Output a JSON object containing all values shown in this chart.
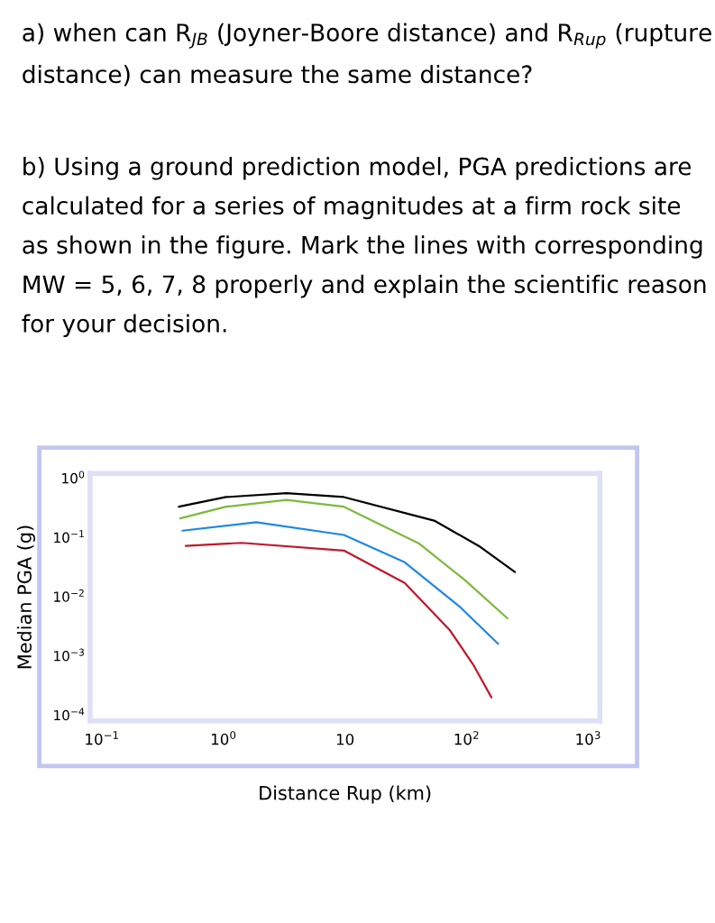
{
  "chart_data": {
    "type": "line",
    "annotations": [
      "a) when can R$_{JB}$ (Joyner-Boore distance) and R$_{Rup}$ (rupture distance) can measure the same distance?",
      "b) Using a ground prediction model, PGA predictions are calculated for a series of magnitudes at a firm rock site as shown in the figure. Mark the lines with corresponding MW = 5, 6, 7, 8 properly and explain the scientific reason for your decision."
    ],
    "xlabel": "Distance Rup (km)",
    "ylabel": "Median PGA (g)",
    "series": [
      {
        "color": "#000000",
        "x": [
          0.43,
          1.05,
          3.3,
          9.8,
          55,
          130,
          250
        ],
        "values": [
          0.33,
          0.48,
          0.56,
          0.48,
          0.19,
          0.069,
          0.026
        ]
      },
      {
        "color": "#7cba3c",
        "x": [
          0.44,
          1.05,
          3.3,
          9.8,
          41,
          97,
          217
        ],
        "values": [
          0.21,
          0.33,
          0.43,
          0.33,
          0.078,
          0.019,
          0.0043
        ]
      },
      {
        "color": "#1e88e5",
        "x": [
          0.46,
          1.86,
          9.8,
          31,
          87,
          182
        ],
        "values": [
          0.13,
          0.18,
          0.11,
          0.038,
          0.0069,
          0.0016
        ]
      },
      {
        "color": "#c0182a",
        "x": [
          0.49,
          1.41,
          9.8,
          31,
          73,
          115,
          160
        ],
        "values": [
          0.072,
          0.081,
          0.06,
          0.017,
          0.0027,
          0.00068,
          0.0002
        ]
      }
    ],
    "log": "xy",
    "xlim": [
      0.08,
      1250
    ],
    "ylim": [
      8e-05,
      1.2
    ],
    "xticks": [
      {
        "value": 0.1,
        "label": "10$^{−1}$"
      },
      {
        "value": 1,
        "label": "10$^{0}$"
      },
      10,
      {
        "value": 100,
        "label": "10$^{2}$"
      },
      {
        "value": 1000,
        "label": "10$^{3}$"
      }
    ],
    "yticks": [
      {
        "value": 1,
        "label": "10$^{0}$"
      },
      {
        "value": 0.1,
        "label": "10$^{−1}$"
      },
      {
        "value": 0.01,
        "label": "10$^{−2}$"
      },
      {
        "value": 0.001,
        "label": "10$^{−3}$"
      },
      {
        "value": 0.0001,
        "label": "10$^{−4}$"
      }
    ],
    "grid": false,
    "line_style": "solid",
    "marker": "none"
  }
}
